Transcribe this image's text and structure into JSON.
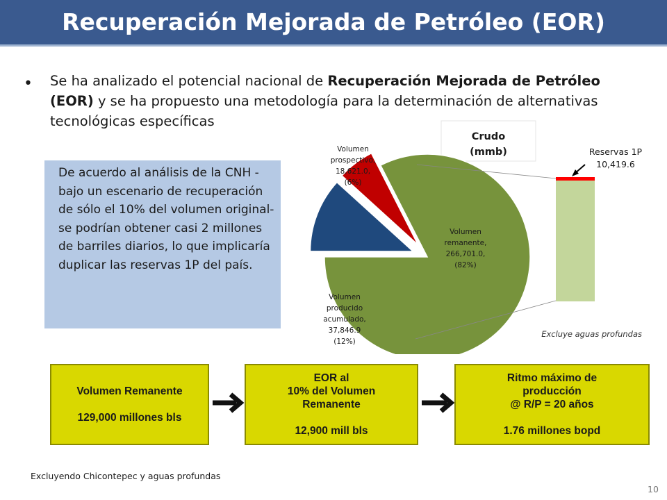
{
  "header": {
    "title": "Recuperación Mejorada de Petróleo (EOR)",
    "bg_color": "#3a5a8f"
  },
  "bullet": {
    "part1": "Se ha analizado el potencial nacional de ",
    "bold1": "Recuperación Mejorada de Petróleo (EOR)",
    "part2": " y se ha propuesto una metodología para la determinación de alternativas tecnológicas específicas"
  },
  "note": {
    "text": "De acuerdo al análisis de la CNH - bajo un escenario de recuperación de sólo el 10% del volumen original- se podrían obtener casi 2 millones de barriles diarios, lo que implicaría duplicar las reservas 1P del país."
  },
  "chart_data": {
    "type": "pie",
    "title": "Crudo (mmb)",
    "slices": [
      {
        "label": "Volumen remanente,",
        "value": 266701.0,
        "value_text": "266,701.0,",
        "percent_text": "(82%)",
        "color": "#77933c"
      },
      {
        "label": "Volumen producido acumulado,",
        "value": 37846.9,
        "value_text": "37,846.9",
        "percent_text": "(12%)",
        "color": "#1f497d"
      },
      {
        "label": "Volumen prospectivo,",
        "value": 18621.0,
        "value_text": "18,621.0,",
        "percent_text": "(6%)",
        "color": "#c00000"
      }
    ],
    "breakout": {
      "label": "Reservas 1P",
      "value": 10419.6,
      "value_text": "10,419.6",
      "color_reserves": "#ff0000",
      "color_rest": "#c3d69b"
    },
    "note": "Excluye aguas profundas"
  },
  "flow": [
    {
      "lines": [
        "Volumen Remanente",
        "",
        "129,000 millones bls"
      ]
    },
    {
      "lines": [
        "EOR al",
        "10% del Volumen",
        "Remanente",
        "",
        "12,900 mill bls"
      ]
    },
    {
      "lines": [
        "Ritmo máximo de",
        "producción",
        "@ R/P = 20 años",
        "",
        "1.76 millones bopd"
      ]
    }
  ],
  "footnote": "Excluyendo Chicontepec y aguas profundas",
  "page_number": "10"
}
